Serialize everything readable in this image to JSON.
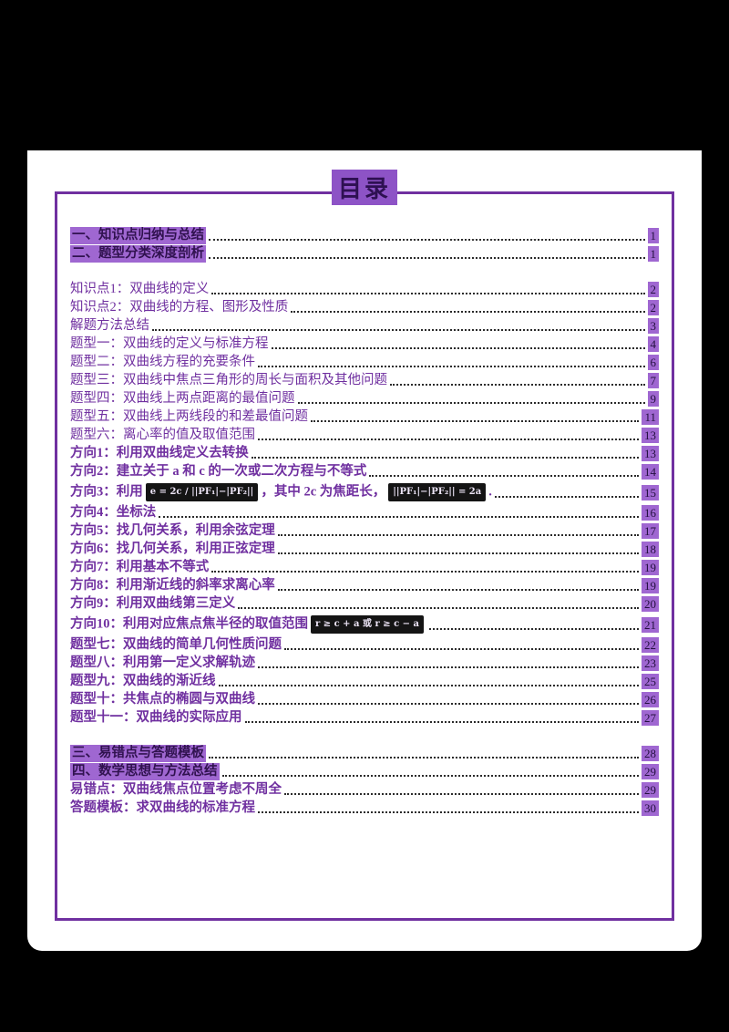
{
  "title": "目录",
  "colors": {
    "accent_purple": "#7030A0",
    "highlight_purple": "#9f67d1",
    "page_background": "#ffffff",
    "outer_background": "#000000"
  },
  "toc": {
    "entries": [
      {
        "label": "一、知识点归纳与总结",
        "page": "1",
        "variant": "highlight"
      },
      {
        "label": "二、题型分类深度剖析",
        "page": "1",
        "variant": "highlight"
      },
      {
        "label": "知识点1：双曲线的定义",
        "page": "2",
        "variant": "normal",
        "gap": true
      },
      {
        "label": "知识点2：双曲线的方程、图形及性质",
        "page": "2",
        "variant": "normal"
      },
      {
        "label": "解题方法总结",
        "page": "3",
        "variant": "normal"
      },
      {
        "label": "题型一：双曲线的定义与标准方程",
        "page": "4",
        "variant": "normal"
      },
      {
        "label": "题型二：双曲线方程的充要条件",
        "page": "6",
        "variant": "normal"
      },
      {
        "label": "题型三：双曲线中焦点三角形的周长与面积及其他问题",
        "page": "7",
        "variant": "normal"
      },
      {
        "label": "题型四：双曲线上两点距离的最值问题",
        "page": "9",
        "variant": "normal"
      },
      {
        "label": "题型五：双曲线上两线段的和差最值问题",
        "page": "11",
        "variant": "normal"
      },
      {
        "label": "题型六：离心率的值及取值范围",
        "page": "13",
        "variant": "normal"
      },
      {
        "label": "方向1：利用双曲线定义去转换",
        "page": "13",
        "variant": "bold"
      },
      {
        "label": "方向2：建立关于 a 和 c 的一次或二次方程与不等式",
        "page": "14",
        "variant": "bold"
      },
      {
        "variant": "formula-row bold",
        "page": "15",
        "parts": [
          {
            "t": "text",
            "v": "方向3：利用"
          },
          {
            "t": "formula",
            "v": "e = 2c ∕ ||PF₁|−|PF₂||"
          },
          {
            "t": "text",
            "v": "，其中 2c 为焦距长，"
          },
          {
            "t": "formula",
            "v": "||PF₁|−|PF₂|| = 2a"
          },
          {
            "t": "text",
            "v": "."
          }
        ]
      },
      {
        "label": "方向4：坐标法",
        "page": "16",
        "variant": "bold"
      },
      {
        "label": "方向5：找几何关系，利用余弦定理",
        "page": "17",
        "variant": "bold"
      },
      {
        "label": "方向6：找几何关系，利用正弦定理",
        "page": "18",
        "variant": "bold"
      },
      {
        "label": "方向7：利用基本不等式",
        "page": "19",
        "variant": "bold"
      },
      {
        "label": "方向8：利用渐近线的斜率求离心率",
        "page": "19",
        "variant": "bold"
      },
      {
        "label": "方向9：利用双曲线第三定义",
        "page": "20",
        "variant": "bold"
      },
      {
        "variant": "formula-row bold",
        "page": "21",
        "parts": [
          {
            "t": "text",
            "v": "方向10：利用对应焦点焦半径的取值范围"
          },
          {
            "t": "formula",
            "v": "r ≥ c + a 或 r ≥ c − a"
          }
        ]
      },
      {
        "label": "题型七：双曲线的简单几何性质问题",
        "page": "22",
        "variant": "bold"
      },
      {
        "label": "题型八：利用第一定义求解轨迹",
        "page": "23",
        "variant": "bold"
      },
      {
        "label": "题型九：双曲线的渐近线",
        "page": "25",
        "variant": "bold"
      },
      {
        "label": "题型十：共焦点的椭圆与双曲线",
        "page": "26",
        "variant": "bold"
      },
      {
        "label": "题型十一：双曲线的实际应用",
        "page": "27",
        "variant": "bold"
      },
      {
        "label": "三、易错点与答题模板",
        "page": "28",
        "variant": "highlight",
        "gap": true
      },
      {
        "label": "四、数学思想与方法总结",
        "page": "29",
        "variant": "highlight"
      },
      {
        "label": "易错点：双曲线焦点位置考虑不周全",
        "page": "29",
        "variant": "bold"
      },
      {
        "label": "答题模板：求双曲线的标准方程",
        "page": "30",
        "variant": "bold"
      }
    ]
  }
}
